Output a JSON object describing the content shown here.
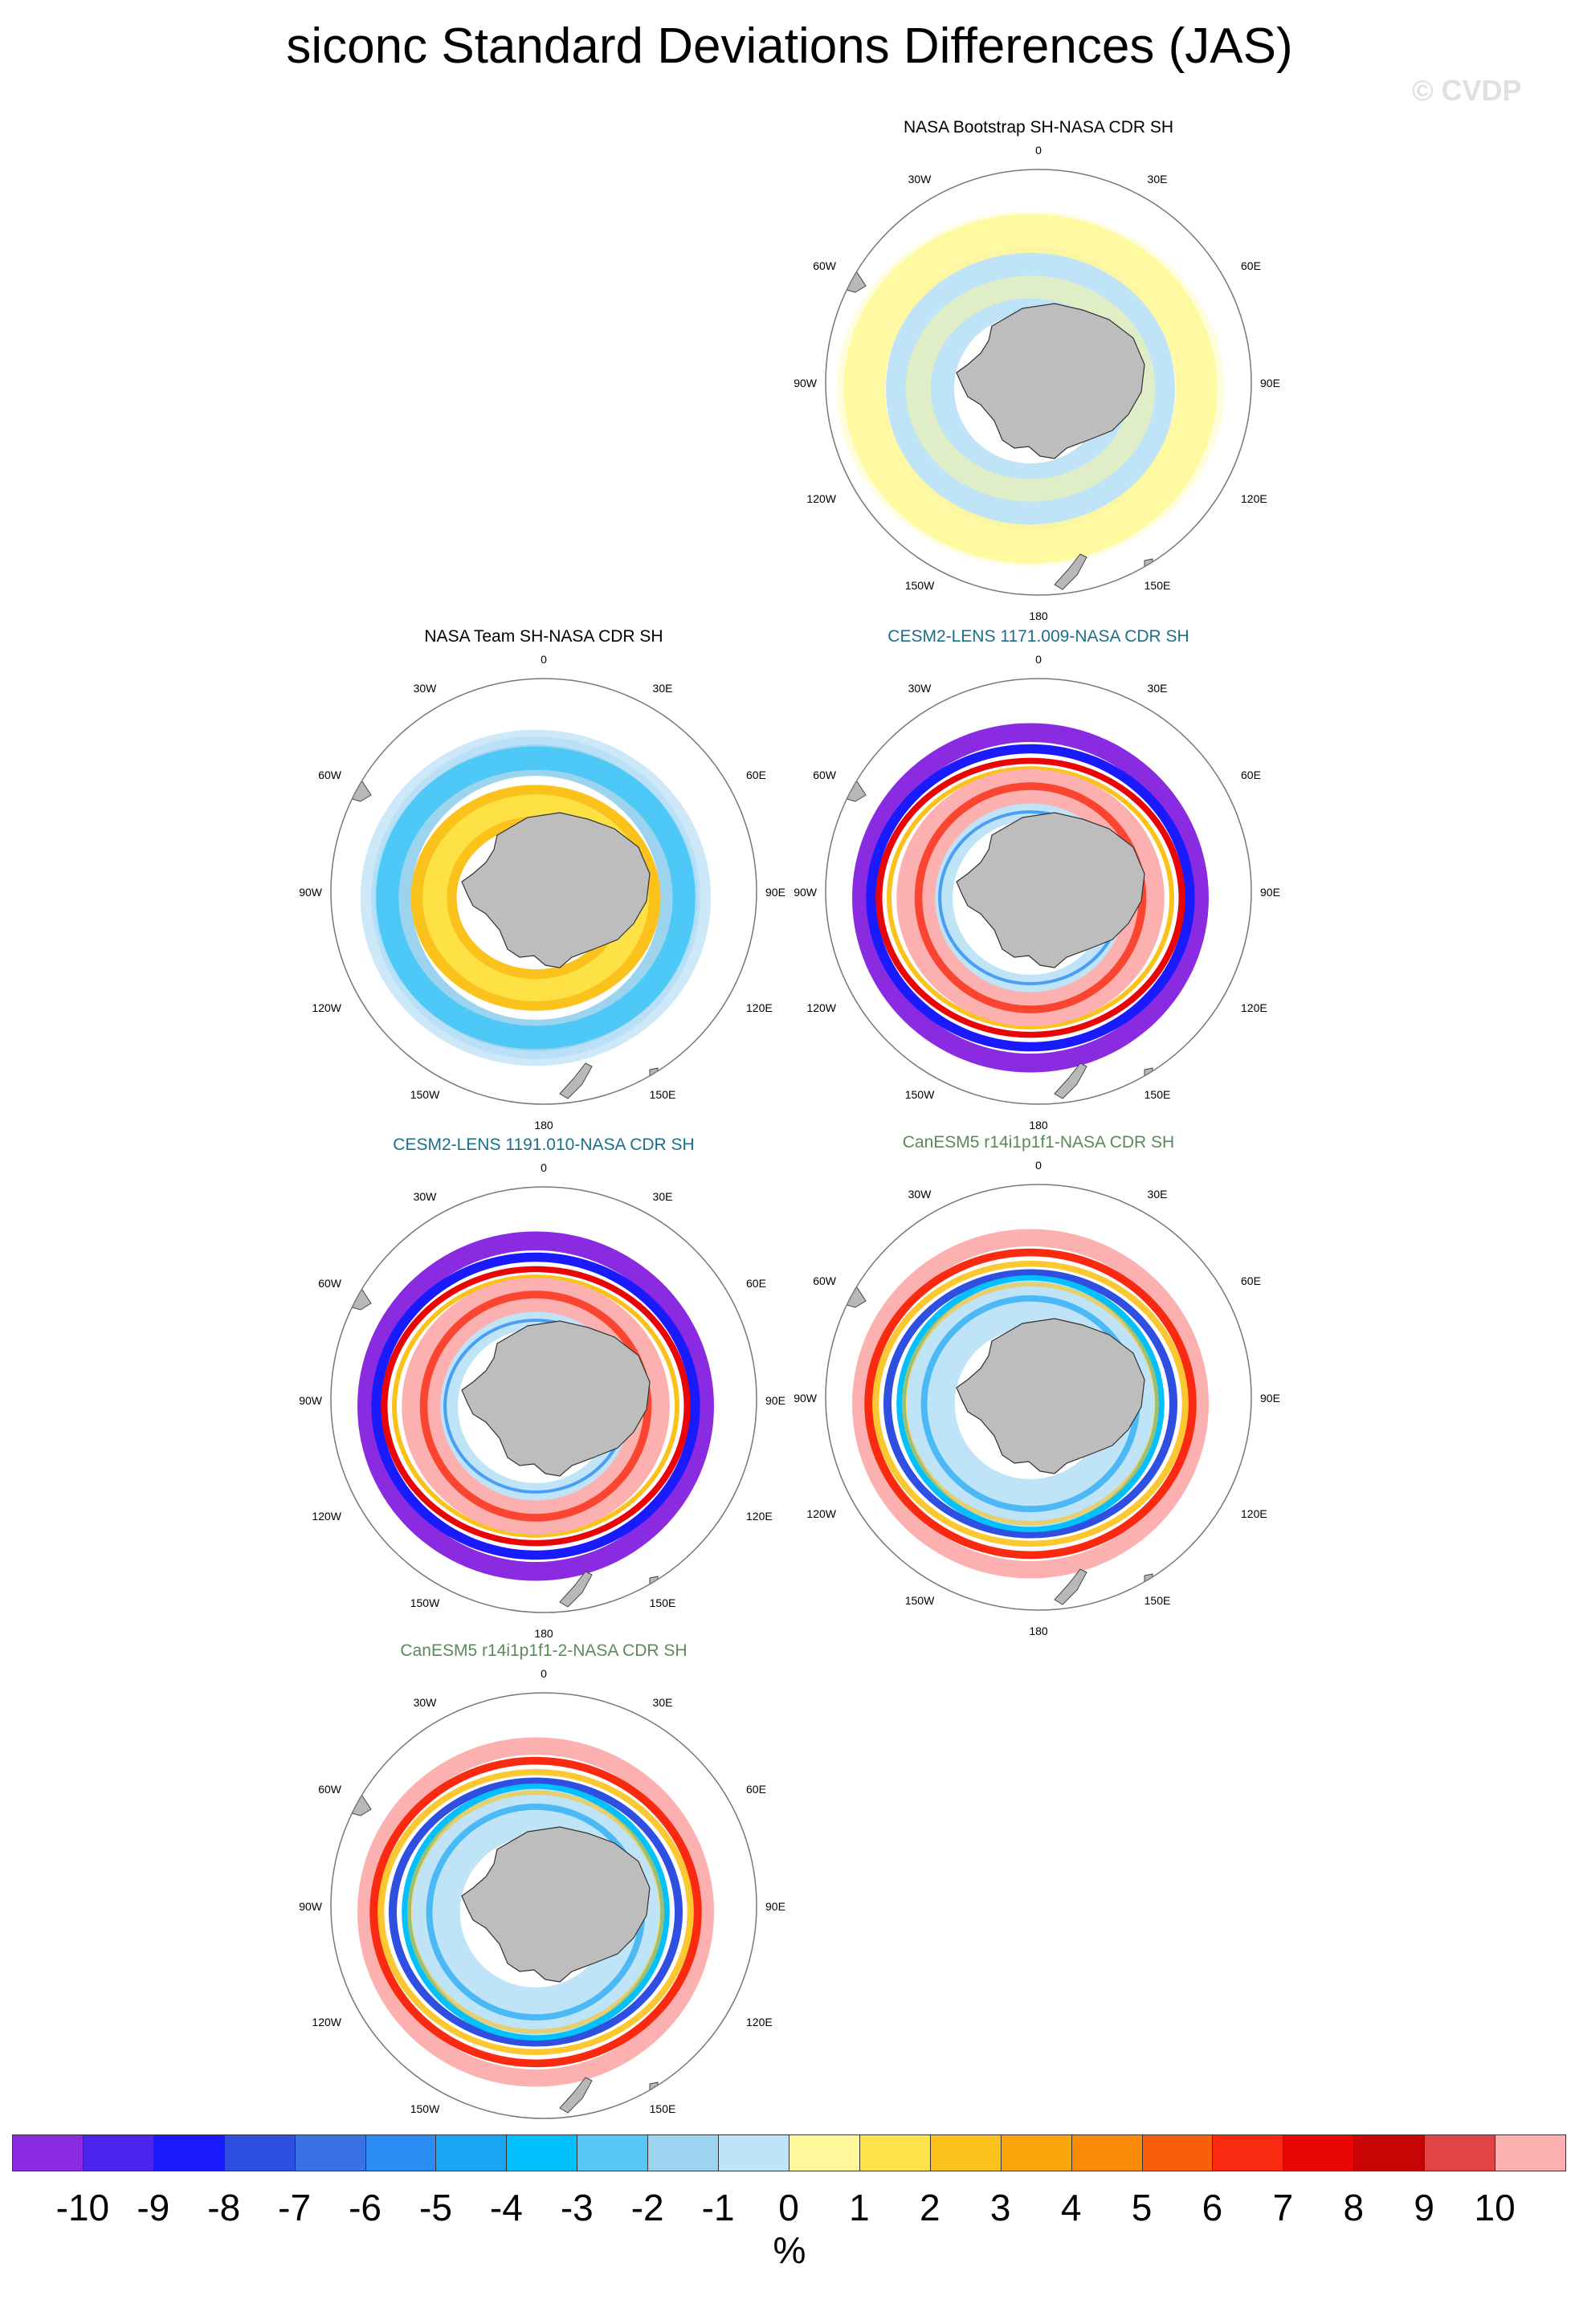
{
  "title": "siconc Standard Deviations Differences (JAS)",
  "watermark": "© CVDP",
  "longitude_labels": {
    "top": "0",
    "bottom": "180",
    "upper_left": "30W",
    "upper_right": "30E",
    "left_upper": "60W",
    "right_upper": "60E",
    "left": "90W",
    "right": "90E",
    "left_lower": "120W",
    "right_lower": "120E",
    "lower_left": "150W",
    "lower_right": "150E"
  },
  "panels": [
    {
      "title": "NASA Bootstrap SH-NASA CDR SH",
      "title_color": "#000000",
      "pattern": "bootstrap"
    },
    {
      "title": "NASA Team SH-NASA CDR SH",
      "title_color": "#000000",
      "pattern": "team"
    },
    {
      "title": "CESM2-LENS 1171.009-NASA CDR SH",
      "title_color": "#1c6f8c",
      "pattern": "cesm"
    },
    {
      "title": "CESM2-LENS 1191.010-NASA CDR SH",
      "title_color": "#1c6f8c",
      "pattern": "cesm"
    },
    {
      "title": "CanESM5 r14i1p1f1-NASA CDR SH",
      "title_color": "#5a8a5a",
      "pattern": "canesm"
    },
    {
      "title": "CanESM5 r14i1p1f1-2-NASA CDR SH",
      "title_color": "#5a8a5a",
      "pattern": "canesm"
    }
  ],
  "colorbar": {
    "labels": [
      "-10",
      "-9",
      "-8",
      "-7",
      "-6",
      "-5",
      "-4",
      "-3",
      "-2",
      "-1",
      "0",
      "1",
      "2",
      "3",
      "4",
      "5",
      "6",
      "7",
      "8",
      "9",
      "10"
    ],
    "colors": [
      "#8a2be2",
      "#4b24ee",
      "#1a1aff",
      "#2e4fe0",
      "#3a72e6",
      "#2a8cf4",
      "#18a6f5",
      "#00c0ff",
      "#56c8f5",
      "#9cd3ee",
      "#c0e4f7",
      "#fff89a",
      "#fde44a",
      "#fcc21c",
      "#fba60c",
      "#fa8a0a",
      "#f85f0a",
      "#fa2a10",
      "#ea0505",
      "#c80404",
      "#e04444",
      "#fcb0b0"
    ],
    "unit": "%"
  }
}
